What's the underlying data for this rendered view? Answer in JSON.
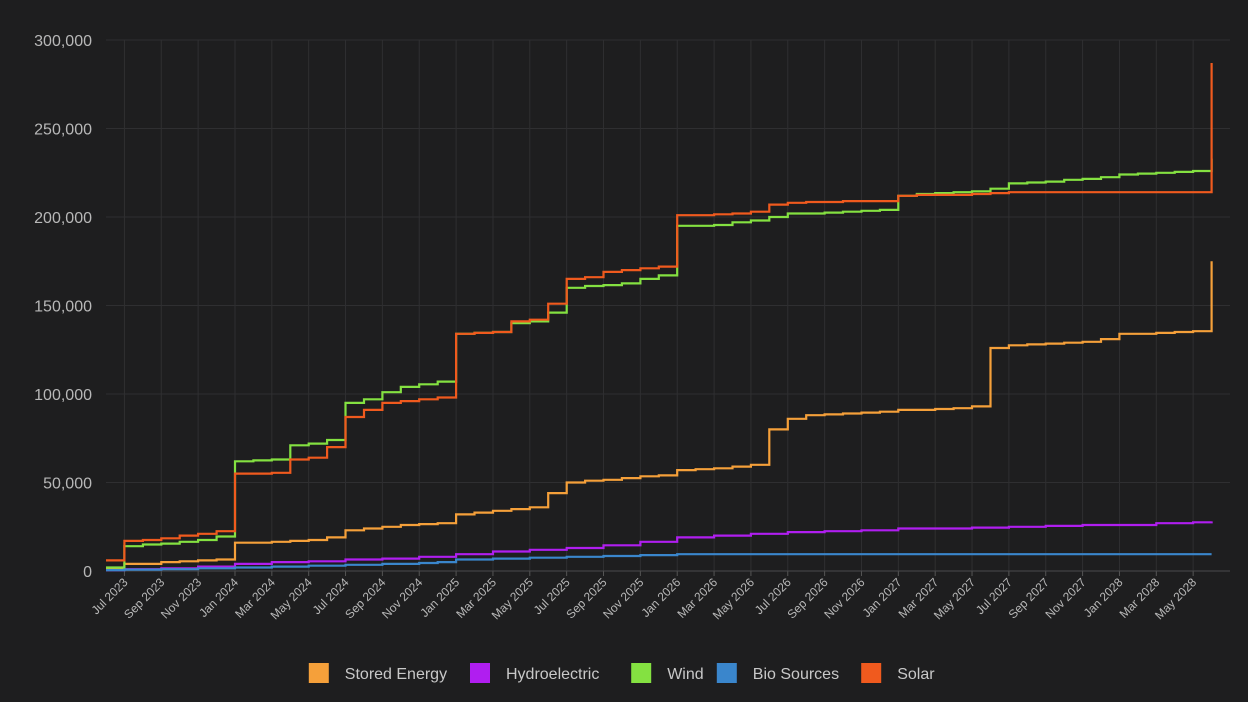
{
  "chart_data": {
    "type": "line",
    "title": "",
    "xlabel": "",
    "ylabel": "",
    "ylim": [
      0,
      300000
    ],
    "yticks": [
      0,
      50000,
      100000,
      150000,
      200000,
      250000,
      300000
    ],
    "ytick_labels": [
      "0",
      "50,000",
      "100,000",
      "150,000",
      "200,000",
      "250,000",
      "300,000"
    ],
    "xticks": [
      "2023-07",
      "2023-09",
      "2023-11",
      "2024-01",
      "2024-03",
      "2024-05",
      "2024-07",
      "2024-09",
      "2024-11",
      "2025-01",
      "2025-03",
      "2025-05",
      "2025-07",
      "2025-09",
      "2025-11",
      "2026-01",
      "2026-03",
      "2026-05",
      "2026-07",
      "2026-09",
      "2026-11",
      "2027-01",
      "2027-03",
      "2027-05",
      "2027-07",
      "2027-09",
      "2027-11",
      "2028-01",
      "2028-03",
      "2028-05"
    ],
    "xtick_labels": [
      "Jul 2023",
      "Sep 2023",
      "Nov 2023",
      "Jan 2024",
      "Mar 2024",
      "May 2024",
      "Jul 2024",
      "Sep 2024",
      "Nov 2024",
      "Jan 2025",
      "Mar 2025",
      "May 2025",
      "Jul 2025",
      "Sep 2025",
      "Nov 2025",
      "Jan 2026",
      "Mar 2026",
      "May 2026",
      "Jul 2026",
      "Sep 2026",
      "Nov 2026",
      "Jan 2027",
      "Mar 2027",
      "May 2027",
      "Jul 2027",
      "Sep 2027",
      "Nov 2027",
      "Jan 2028",
      "Mar 2028",
      "May 2028"
    ],
    "xlim": [
      "2023-06",
      "2028-07"
    ],
    "grid": true,
    "legend_position": "bottom",
    "series": [
      {
        "name": "Stored Energy",
        "color": "#f5a03a",
        "points": [
          [
            "2023-06",
            1000
          ],
          [
            "2023-07",
            4000
          ],
          [
            "2023-08",
            4000
          ],
          [
            "2023-09",
            5000
          ],
          [
            "2023-10",
            5500
          ],
          [
            "2023-11",
            6000
          ],
          [
            "2023-12",
            6500
          ],
          [
            "2024-01",
            16000
          ],
          [
            "2024-03",
            16500
          ],
          [
            "2024-04",
            17000
          ],
          [
            "2024-05",
            17500
          ],
          [
            "2024-06",
            19000
          ],
          [
            "2024-07",
            23000
          ],
          [
            "2024-08",
            24000
          ],
          [
            "2024-09",
            25000
          ],
          [
            "2024-10",
            26000
          ],
          [
            "2024-11",
            26500
          ],
          [
            "2024-12",
            27000
          ],
          [
            "2025-01",
            32000
          ],
          [
            "2025-02",
            33000
          ],
          [
            "2025-03",
            34000
          ],
          [
            "2025-04",
            35000
          ],
          [
            "2025-05",
            36000
          ],
          [
            "2025-06",
            44000
          ],
          [
            "2025-07",
            50000
          ],
          [
            "2025-08",
            51000
          ],
          [
            "2025-09",
            51500
          ],
          [
            "2025-10",
            52500
          ],
          [
            "2025-11",
            53500
          ],
          [
            "2025-12",
            54000
          ],
          [
            "2026-01",
            57000
          ],
          [
            "2026-02",
            57500
          ],
          [
            "2026-03",
            58000
          ],
          [
            "2026-04",
            59000
          ],
          [
            "2026-05",
            60000
          ],
          [
            "2026-06",
            80000
          ],
          [
            "2026-07",
            86000
          ],
          [
            "2026-08",
            88000
          ],
          [
            "2026-09",
            88500
          ],
          [
            "2026-10",
            89000
          ],
          [
            "2026-11",
            89500
          ],
          [
            "2026-12",
            90000
          ],
          [
            "2027-01",
            91000
          ],
          [
            "2027-02",
            91000
          ],
          [
            "2027-03",
            91500
          ],
          [
            "2027-04",
            92000
          ],
          [
            "2027-05",
            93000
          ],
          [
            "2027-06",
            126000
          ],
          [
            "2027-07",
            127500
          ],
          [
            "2027-08",
            128000
          ],
          [
            "2027-09",
            128500
          ],
          [
            "2027-10",
            129000
          ],
          [
            "2027-11",
            129500
          ],
          [
            "2027-12",
            131000
          ],
          [
            "2028-01",
            134000
          ],
          [
            "2028-02",
            134000
          ],
          [
            "2028-03",
            134500
          ],
          [
            "2028-04",
            135000
          ],
          [
            "2028-05",
            135500
          ],
          [
            "2028-06",
            175000
          ]
        ]
      },
      {
        "name": "Hydroelectric",
        "color": "#b01ef0",
        "points": [
          [
            "2023-06",
            500
          ],
          [
            "2023-07",
            1000
          ],
          [
            "2023-09",
            1500
          ],
          [
            "2023-11",
            2500
          ],
          [
            "2024-01",
            4000
          ],
          [
            "2024-03",
            5000
          ],
          [
            "2024-05",
            5500
          ],
          [
            "2024-07",
            6500
          ],
          [
            "2024-09",
            7000
          ],
          [
            "2024-11",
            8000
          ],
          [
            "2025-01",
            9500
          ],
          [
            "2025-03",
            11000
          ],
          [
            "2025-05",
            12000
          ],
          [
            "2025-07",
            13000
          ],
          [
            "2025-09",
            14500
          ],
          [
            "2025-11",
            16500
          ],
          [
            "2026-01",
            19000
          ],
          [
            "2026-03",
            20000
          ],
          [
            "2026-05",
            21000
          ],
          [
            "2026-07",
            22000
          ],
          [
            "2026-09",
            22500
          ],
          [
            "2026-11",
            23000
          ],
          [
            "2027-01",
            24000
          ],
          [
            "2027-03",
            24000
          ],
          [
            "2027-05",
            24500
          ],
          [
            "2027-07",
            25000
          ],
          [
            "2027-09",
            25500
          ],
          [
            "2027-11",
            26000
          ],
          [
            "2028-01",
            26000
          ],
          [
            "2028-03",
            27000
          ],
          [
            "2028-05",
            27500
          ],
          [
            "2028-06",
            28000
          ]
        ]
      },
      {
        "name": "Wind",
        "color": "#84e141",
        "points": [
          [
            "2023-06",
            2000
          ],
          [
            "2023-07",
            14000
          ],
          [
            "2023-08",
            15000
          ],
          [
            "2023-09",
            15500
          ],
          [
            "2023-10",
            16500
          ],
          [
            "2023-11",
            17500
          ],
          [
            "2023-12",
            19500
          ],
          [
            "2024-01",
            62000
          ],
          [
            "2024-02",
            62500
          ],
          [
            "2024-03",
            63000
          ],
          [
            "2024-04",
            71000
          ],
          [
            "2024-05",
            72000
          ],
          [
            "2024-06",
            74000
          ],
          [
            "2024-07",
            95000
          ],
          [
            "2024-08",
            97000
          ],
          [
            "2024-09",
            101000
          ],
          [
            "2024-10",
            104000
          ],
          [
            "2024-11",
            105500
          ],
          [
            "2024-12",
            107000
          ],
          [
            "2025-01",
            134000
          ],
          [
            "2025-02",
            134500
          ],
          [
            "2025-03",
            135000
          ],
          [
            "2025-04",
            140000
          ],
          [
            "2025-05",
            141000
          ],
          [
            "2025-06",
            146000
          ],
          [
            "2025-07",
            160000
          ],
          [
            "2025-08",
            161000
          ],
          [
            "2025-09",
            161500
          ],
          [
            "2025-10",
            162500
          ],
          [
            "2025-11",
            165000
          ],
          [
            "2025-12",
            167000
          ],
          [
            "2026-01",
            195000
          ],
          [
            "2026-02",
            195000
          ],
          [
            "2026-03",
            195500
          ],
          [
            "2026-04",
            197000
          ],
          [
            "2026-05",
            198000
          ],
          [
            "2026-06",
            200000
          ],
          [
            "2026-07",
            202000
          ],
          [
            "2026-08",
            202000
          ],
          [
            "2026-09",
            202500
          ],
          [
            "2026-10",
            203000
          ],
          [
            "2026-11",
            203500
          ],
          [
            "2026-12",
            204000
          ],
          [
            "2027-01",
            212000
          ],
          [
            "2027-02",
            213000
          ],
          [
            "2027-03",
            213500
          ],
          [
            "2027-04",
            214000
          ],
          [
            "2027-05",
            214500
          ],
          [
            "2027-06",
            216000
          ],
          [
            "2027-07",
            219000
          ],
          [
            "2027-08",
            219500
          ],
          [
            "2027-09",
            220000
          ],
          [
            "2027-10",
            221000
          ],
          [
            "2027-11",
            221500
          ],
          [
            "2027-12",
            222500
          ],
          [
            "2028-01",
            224000
          ],
          [
            "2028-02",
            224500
          ],
          [
            "2028-03",
            225000
          ],
          [
            "2028-04",
            225500
          ],
          [
            "2028-05",
            226000
          ],
          [
            "2028-06",
            233000
          ]
        ]
      },
      {
        "name": "Bio Sources",
        "color": "#3a86cc",
        "points": [
          [
            "2023-06",
            500
          ],
          [
            "2023-07",
            800
          ],
          [
            "2023-09",
            1000
          ],
          [
            "2023-11",
            1500
          ],
          [
            "2024-01",
            2000
          ],
          [
            "2024-03",
            2500
          ],
          [
            "2024-05",
            3000
          ],
          [
            "2024-07",
            3500
          ],
          [
            "2024-09",
            4000
          ],
          [
            "2024-11",
            4500
          ],
          [
            "2024-12",
            5000
          ],
          [
            "2025-01",
            6500
          ],
          [
            "2025-03",
            7000
          ],
          [
            "2025-05",
            7500
          ],
          [
            "2025-07",
            8000
          ],
          [
            "2025-09",
            8500
          ],
          [
            "2025-11",
            9000
          ],
          [
            "2026-01",
            9500
          ],
          [
            "2026-03",
            9500
          ],
          [
            "2026-06",
            9500
          ],
          [
            "2026-09",
            9500
          ],
          [
            "2026-12",
            9500
          ],
          [
            "2027-03",
            9500
          ],
          [
            "2027-06",
            9500
          ],
          [
            "2027-09",
            9500
          ],
          [
            "2027-12",
            9500
          ],
          [
            "2028-03",
            9500
          ],
          [
            "2028-06",
            9500
          ]
        ]
      },
      {
        "name": "Solar",
        "color": "#f05a1e",
        "points": [
          [
            "2023-06",
            6000
          ],
          [
            "2023-07",
            17000
          ],
          [
            "2023-08",
            17500
          ],
          [
            "2023-09",
            18500
          ],
          [
            "2023-10",
            20000
          ],
          [
            "2023-11",
            21000
          ],
          [
            "2023-12",
            22500
          ],
          [
            "2024-01",
            55000
          ],
          [
            "2024-02",
            55000
          ],
          [
            "2024-03",
            55500
          ],
          [
            "2024-04",
            63000
          ],
          [
            "2024-05",
            64000
          ],
          [
            "2024-06",
            70000
          ],
          [
            "2024-07",
            87000
          ],
          [
            "2024-08",
            91000
          ],
          [
            "2024-09",
            95000
          ],
          [
            "2024-10",
            96000
          ],
          [
            "2024-11",
            97000
          ],
          [
            "2024-12",
            98000
          ],
          [
            "2025-01",
            134000
          ],
          [
            "2025-02",
            134500
          ],
          [
            "2025-03",
            135000
          ],
          [
            "2025-04",
            141000
          ],
          [
            "2025-05",
            142000
          ],
          [
            "2025-06",
            151000
          ],
          [
            "2025-07",
            165000
          ],
          [
            "2025-08",
            166000
          ],
          [
            "2025-09",
            169000
          ],
          [
            "2025-10",
            170000
          ],
          [
            "2025-11",
            171000
          ],
          [
            "2025-12",
            172000
          ],
          [
            "2026-01",
            201000
          ],
          [
            "2026-02",
            201000
          ],
          [
            "2026-03",
            201500
          ],
          [
            "2026-04",
            202000
          ],
          [
            "2026-05",
            203000
          ],
          [
            "2026-06",
            207000
          ],
          [
            "2026-07",
            208000
          ],
          [
            "2026-08",
            208500
          ],
          [
            "2026-09",
            208500
          ],
          [
            "2026-10",
            209000
          ],
          [
            "2026-11",
            209000
          ],
          [
            "2026-12",
            209000
          ],
          [
            "2027-01",
            212000
          ],
          [
            "2027-02",
            212500
          ],
          [
            "2027-03",
            212500
          ],
          [
            "2027-04",
            212500
          ],
          [
            "2027-05",
            213000
          ],
          [
            "2027-06",
            213500
          ],
          [
            "2027-07",
            214000
          ],
          [
            "2027-08",
            214000
          ],
          [
            "2027-09",
            214000
          ],
          [
            "2027-10",
            214000
          ],
          [
            "2027-11",
            214000
          ],
          [
            "2027-12",
            214000
          ],
          [
            "2028-01",
            214000
          ],
          [
            "2028-02",
            214000
          ],
          [
            "2028-03",
            214000
          ],
          [
            "2028-04",
            214000
          ],
          [
            "2028-05",
            214000
          ],
          [
            "2028-06",
            287000
          ]
        ]
      }
    ]
  }
}
